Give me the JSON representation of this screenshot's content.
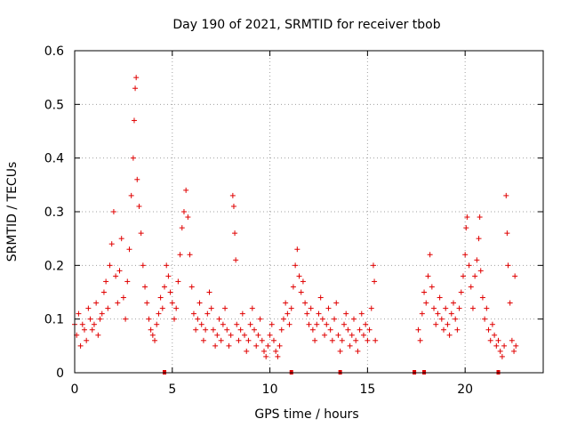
{
  "chart_data": {
    "type": "scatter",
    "title": "Day 190 of 2021, SRMTID for receiver tbob",
    "xlabel": "GPS time / hours",
    "ylabel": "SRMTID / TECUs",
    "xlim": [
      0,
      24
    ],
    "ylim": [
      0,
      0.6
    ],
    "xticks": [
      0,
      5,
      10,
      15,
      20
    ],
    "yticks": [
      0,
      0.1,
      0.2,
      0.3,
      0.4,
      0.5,
      0.6
    ],
    "xtick_labels": [
      "0",
      "5",
      "10",
      "15",
      "20"
    ],
    "ytick_labels": [
      "0",
      "0.1",
      "0.2",
      "0.3",
      "0.4",
      "0.5",
      "0.6"
    ],
    "grid": true,
    "marker": "+",
    "color": "#e00000",
    "series": [
      {
        "name": "SRMTID",
        "points": [
          [
            0.0,
            0.09
          ],
          [
            0.1,
            0.07
          ],
          [
            0.2,
            0.11
          ],
          [
            0.3,
            0.05
          ],
          [
            0.4,
            0.09
          ],
          [
            0.5,
            0.08
          ],
          [
            0.6,
            0.06
          ],
          [
            0.7,
            0.12
          ],
          [
            0.8,
            0.1
          ],
          [
            0.9,
            0.08
          ],
          [
            1.0,
            0.09
          ],
          [
            1.1,
            0.13
          ],
          [
            1.2,
            0.07
          ],
          [
            1.3,
            0.1
          ],
          [
            1.4,
            0.11
          ],
          [
            1.5,
            0.15
          ],
          [
            1.6,
            0.17
          ],
          [
            1.7,
            0.12
          ],
          [
            1.8,
            0.2
          ],
          [
            1.9,
            0.24
          ],
          [
            2.0,
            0.3
          ],
          [
            2.1,
            0.18
          ],
          [
            2.2,
            0.13
          ],
          [
            2.3,
            0.19
          ],
          [
            2.4,
            0.25
          ],
          [
            2.5,
            0.14
          ],
          [
            2.6,
            0.1
          ],
          [
            2.7,
            0.17
          ],
          [
            2.8,
            0.23
          ],
          [
            2.9,
            0.33
          ],
          [
            3.0,
            0.4
          ],
          [
            3.05,
            0.47
          ],
          [
            3.1,
            0.53
          ],
          [
            3.15,
            0.55
          ],
          [
            3.2,
            0.36
          ],
          [
            3.3,
            0.31
          ],
          [
            3.4,
            0.26
          ],
          [
            3.5,
            0.2
          ],
          [
            3.6,
            0.16
          ],
          [
            3.7,
            0.13
          ],
          [
            3.8,
            0.1
          ],
          [
            3.9,
            0.08
          ],
          [
            4.0,
            0.07
          ],
          [
            4.1,
            0.06
          ],
          [
            4.2,
            0.09
          ],
          [
            4.3,
            0.11
          ],
          [
            4.4,
            0.14
          ],
          [
            4.5,
            0.12
          ],
          [
            4.6,
            0.16
          ],
          [
            4.7,
            0.2
          ],
          [
            4.8,
            0.18
          ],
          [
            4.9,
            0.15
          ],
          [
            5.0,
            0.13
          ],
          [
            5.1,
            0.1
          ],
          [
            5.2,
            0.12
          ],
          [
            5.3,
            0.17
          ],
          [
            5.4,
            0.22
          ],
          [
            5.5,
            0.27
          ],
          [
            5.6,
            0.3
          ],
          [
            5.7,
            0.34
          ],
          [
            5.8,
            0.29
          ],
          [
            5.9,
            0.22
          ],
          [
            6.0,
            0.16
          ],
          [
            6.1,
            0.11
          ],
          [
            6.2,
            0.08
          ],
          [
            6.3,
            0.1
          ],
          [
            6.4,
            0.13
          ],
          [
            6.5,
            0.09
          ],
          [
            6.6,
            0.06
          ],
          [
            6.7,
            0.08
          ],
          [
            6.8,
            0.11
          ],
          [
            6.9,
            0.15
          ],
          [
            7.0,
            0.12
          ],
          [
            7.1,
            0.08
          ],
          [
            7.2,
            0.05
          ],
          [
            7.3,
            0.07
          ],
          [
            7.4,
            0.1
          ],
          [
            7.5,
            0.06
          ],
          [
            7.6,
            0.09
          ],
          [
            7.7,
            0.12
          ],
          [
            7.8,
            0.08
          ],
          [
            7.9,
            0.05
          ],
          [
            8.0,
            0.07
          ],
          [
            8.1,
            0.33
          ],
          [
            8.15,
            0.31
          ],
          [
            8.2,
            0.26
          ],
          [
            8.25,
            0.21
          ],
          [
            8.3,
            0.09
          ],
          [
            8.4,
            0.06
          ],
          [
            8.5,
            0.08
          ],
          [
            8.6,
            0.11
          ],
          [
            8.7,
            0.07
          ],
          [
            8.8,
            0.04
          ],
          [
            8.9,
            0.06
          ],
          [
            9.0,
            0.09
          ],
          [
            9.1,
            0.12
          ],
          [
            9.2,
            0.08
          ],
          [
            9.3,
            0.05
          ],
          [
            9.4,
            0.07
          ],
          [
            9.5,
            0.1
          ],
          [
            9.6,
            0.06
          ],
          [
            9.7,
            0.04
          ],
          [
            9.8,
            0.03
          ],
          [
            9.9,
            0.05
          ],
          [
            10.0,
            0.07
          ],
          [
            10.1,
            0.09
          ],
          [
            10.2,
            0.06
          ],
          [
            10.3,
            0.04
          ],
          [
            10.4,
            0.03
          ],
          [
            10.5,
            0.05
          ],
          [
            10.6,
            0.08
          ],
          [
            10.7,
            0.1
          ],
          [
            10.8,
            0.13
          ],
          [
            10.9,
            0.11
          ],
          [
            11.0,
            0.09
          ],
          [
            11.1,
            0.12
          ],
          [
            11.2,
            0.16
          ],
          [
            11.3,
            0.2
          ],
          [
            11.4,
            0.23
          ],
          [
            11.5,
            0.18
          ],
          [
            11.6,
            0.15
          ],
          [
            11.7,
            0.17
          ],
          [
            11.8,
            0.13
          ],
          [
            11.9,
            0.11
          ],
          [
            12.0,
            0.09
          ],
          [
            12.1,
            0.12
          ],
          [
            12.2,
            0.08
          ],
          [
            12.3,
            0.06
          ],
          [
            12.4,
            0.09
          ],
          [
            12.5,
            0.11
          ],
          [
            12.6,
            0.14
          ],
          [
            12.7,
            0.1
          ],
          [
            12.8,
            0.07
          ],
          [
            12.9,
            0.09
          ],
          [
            13.0,
            0.12
          ],
          [
            13.1,
            0.08
          ],
          [
            13.2,
            0.06
          ],
          [
            13.3,
            0.1
          ],
          [
            13.4,
            0.13
          ],
          [
            13.5,
            0.07
          ],
          [
            13.6,
            0.04
          ],
          [
            13.7,
            0.06
          ],
          [
            13.8,
            0.09
          ],
          [
            13.9,
            0.11
          ],
          [
            14.0,
            0.08
          ],
          [
            14.1,
            0.05
          ],
          [
            14.2,
            0.07
          ],
          [
            14.3,
            0.1
          ],
          [
            14.4,
            0.06
          ],
          [
            14.5,
            0.04
          ],
          [
            14.6,
            0.08
          ],
          [
            14.7,
            0.11
          ],
          [
            14.8,
            0.07
          ],
          [
            14.9,
            0.09
          ],
          [
            15.0,
            0.06
          ],
          [
            15.1,
            0.08
          ],
          [
            15.2,
            0.12
          ],
          [
            15.3,
            0.2
          ],
          [
            15.35,
            0.17
          ],
          [
            15.4,
            0.06
          ],
          [
            17.6,
            0.08
          ],
          [
            17.7,
            0.06
          ],
          [
            17.8,
            0.11
          ],
          [
            17.9,
            0.15
          ],
          [
            18.0,
            0.13
          ],
          [
            18.1,
            0.18
          ],
          [
            18.2,
            0.22
          ],
          [
            18.3,
            0.16
          ],
          [
            18.4,
            0.12
          ],
          [
            18.5,
            0.09
          ],
          [
            18.6,
            0.11
          ],
          [
            18.7,
            0.14
          ],
          [
            18.8,
            0.1
          ],
          [
            18.9,
            0.08
          ],
          [
            19.0,
            0.12
          ],
          [
            19.1,
            0.09
          ],
          [
            19.2,
            0.07
          ],
          [
            19.3,
            0.11
          ],
          [
            19.4,
            0.13
          ],
          [
            19.5,
            0.1
          ],
          [
            19.6,
            0.08
          ],
          [
            19.7,
            0.12
          ],
          [
            19.8,
            0.15
          ],
          [
            19.9,
            0.18
          ],
          [
            20.0,
            0.22
          ],
          [
            20.05,
            0.27
          ],
          [
            20.1,
            0.29
          ],
          [
            20.2,
            0.2
          ],
          [
            20.3,
            0.16
          ],
          [
            20.4,
            0.12
          ],
          [
            20.5,
            0.18
          ],
          [
            20.6,
            0.21
          ],
          [
            20.7,
            0.25
          ],
          [
            20.75,
            0.29
          ],
          [
            20.8,
            0.19
          ],
          [
            20.9,
            0.14
          ],
          [
            21.0,
            0.1
          ],
          [
            21.1,
            0.12
          ],
          [
            21.2,
            0.08
          ],
          [
            21.3,
            0.06
          ],
          [
            21.4,
            0.09
          ],
          [
            21.5,
            0.07
          ],
          [
            21.6,
            0.05
          ],
          [
            21.7,
            0.06
          ],
          [
            21.8,
            0.04
          ],
          [
            21.9,
            0.03
          ],
          [
            22.0,
            0.05
          ],
          [
            22.1,
            0.33
          ],
          [
            22.15,
            0.26
          ],
          [
            22.2,
            0.2
          ],
          [
            22.3,
            0.13
          ],
          [
            22.4,
            0.06
          ],
          [
            22.5,
            0.04
          ],
          [
            22.55,
            0.18
          ],
          [
            22.6,
            0.05
          ]
        ]
      }
    ],
    "gap_markers_x": [
      4.6,
      11.1,
      13.6,
      17.4,
      17.9,
      21.7
    ]
  }
}
